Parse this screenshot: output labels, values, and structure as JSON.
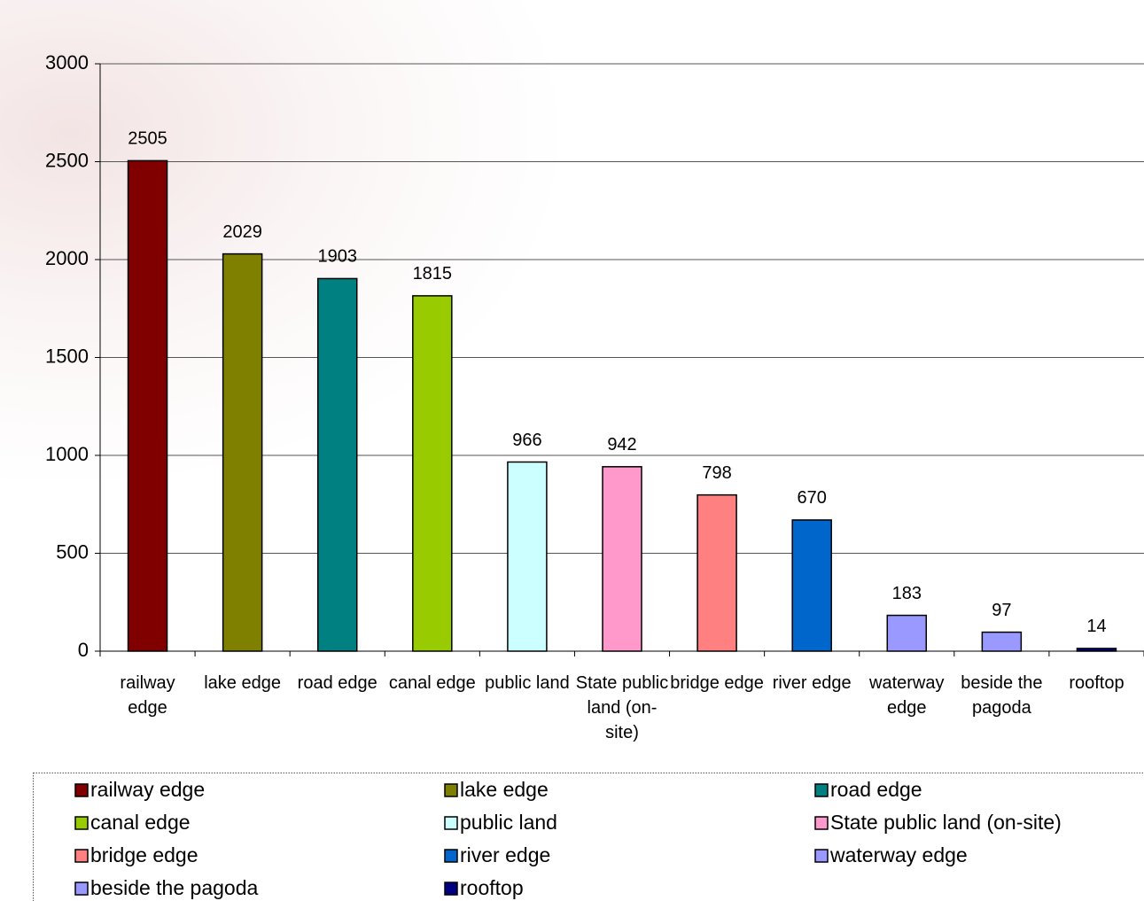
{
  "chart_data": {
    "type": "bar",
    "categories": [
      "railway edge",
      "lake edge",
      "road edge",
      "canal edge",
      "public land",
      "State public land (on-site)",
      "bridge edge",
      "river edge",
      "waterway edge",
      "beside the pagoda",
      "rooftop"
    ],
    "values": [
      2505,
      2029,
      1903,
      1815,
      966,
      942,
      798,
      670,
      183,
      97,
      14
    ],
    "colors": [
      "#800000",
      "#808000",
      "#008080",
      "#99cc00",
      "#ccffff",
      "#ff99cc",
      "#ff8080",
      "#0066cc",
      "#9999ff",
      "#9999ff",
      "#000080"
    ],
    "ylim": [
      0,
      3000
    ],
    "yticks": [
      0,
      500,
      1000,
      1500,
      2000,
      2500,
      3000
    ],
    "grid": true,
    "legend": "bottom"
  }
}
